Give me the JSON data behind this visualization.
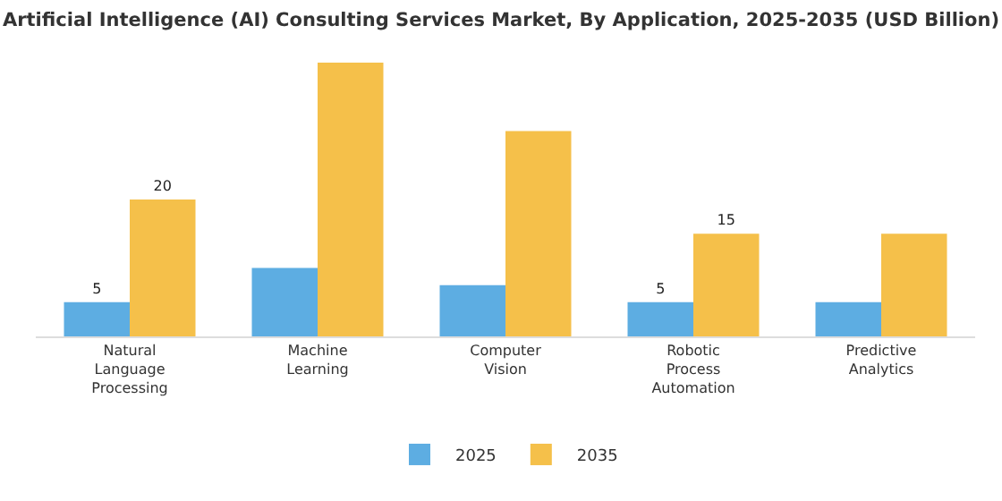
{
  "chart_data": {
    "type": "bar",
    "title": "Artificial Intelligence (AI) Consulting Services Market, By Application, 2025-2035 (USD Billion)",
    "categories": [
      "Natural\nLanguage\nProcessing",
      "Machine\nLearning",
      "Computer\nVision",
      "Robotic\nProcess\nAutomation",
      "Predictive\nAnalytics"
    ],
    "series": [
      {
        "name": "2025",
        "color": "#5dade2",
        "values": [
          5,
          10,
          7.5,
          5,
          5
        ],
        "value_labels": [
          "5",
          null,
          null,
          "5",
          null
        ]
      },
      {
        "name": "2035",
        "color": "#f5c04a",
        "values": [
          20,
          40,
          30,
          15,
          15
        ],
        "value_labels": [
          "20",
          null,
          null,
          "15",
          null
        ]
      }
    ],
    "legend": "bottom"
  }
}
